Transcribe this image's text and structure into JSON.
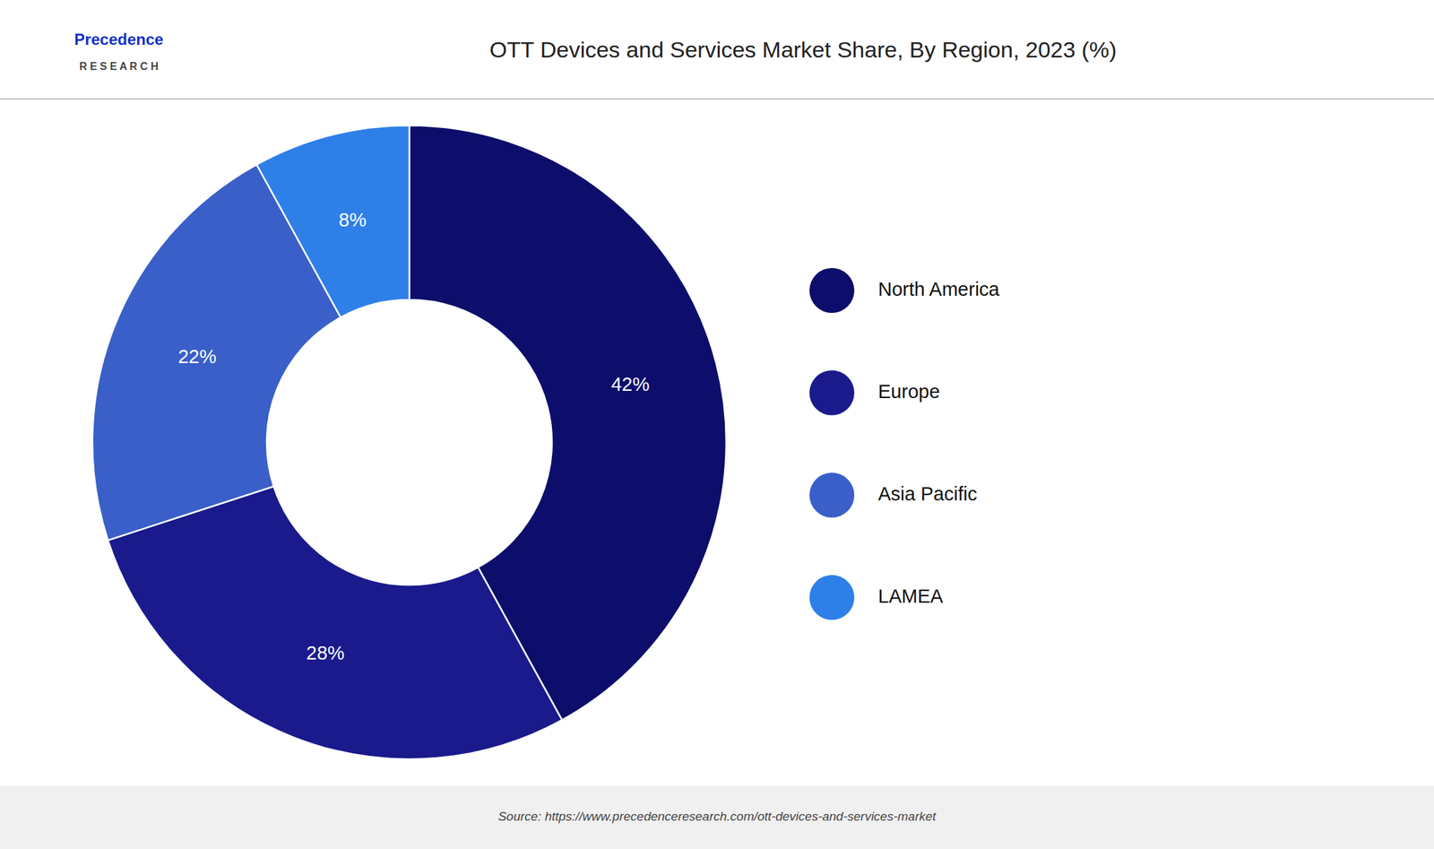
{
  "chart_data": {
    "type": "donut",
    "title": "OTT Devices and Services Market Share, By Region, 2023 (%)",
    "categories": [
      "North America",
      "Europe",
      "Asia Pacific",
      "LAMEA"
    ],
    "values": [
      42,
      28,
      22,
      8
    ],
    "value_labels": [
      "42%",
      "28%",
      "22%",
      "8%"
    ],
    "colors": [
      "#0d0d6b",
      "#1a1a8c",
      "#3a5fc8",
      "#2e7fe8"
    ],
    "data_labels": true,
    "legend": "right",
    "annotations": [
      "Precedence",
      "R E S E A R C H",
      "Source: https://www.precedenceresearch.com/ott-devices-and-services-market"
    ]
  }
}
